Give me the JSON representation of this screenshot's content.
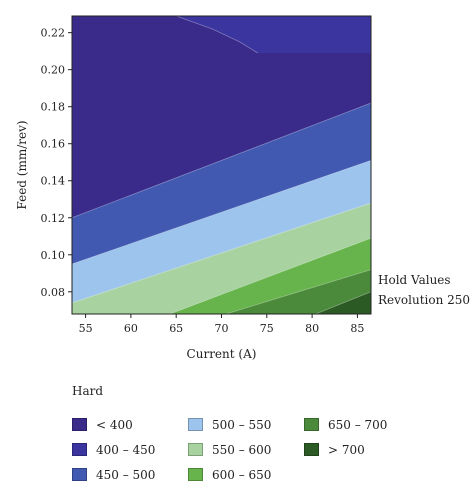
{
  "chart_data": {
    "type": "contour",
    "xlabel": "Current (A)",
    "ylabel": "Feed (mm/rev)",
    "xlim": [
      53.5,
      86.5
    ],
    "ylim": [
      0.068,
      0.229
    ],
    "xticks": [
      55,
      60,
      65,
      70,
      75,
      80,
      85
    ],
    "yticks": [
      0.08,
      0.1,
      0.12,
      0.14,
      0.16,
      0.18,
      0.2,
      0.22
    ],
    "xtick_labels": [
      "55",
      "60",
      "65",
      "70",
      "75",
      "80",
      "85"
    ],
    "ytick_labels": [
      "0.08",
      "0.10",
      "0.12",
      "0.14",
      "0.16",
      "0.18",
      "0.20",
      "0.22"
    ],
    "hold_values": {
      "title": "Hold Values",
      "line": "Revolution 250"
    },
    "legend": {
      "title": "Hard",
      "placement": "bottom",
      "items": [
        {
          "label": "< 400",
          "color": "#3a2a8a"
        },
        {
          "label": "400 – 450",
          "color": "#3b35a0"
        },
        {
          "label": "450 – 500",
          "color": "#4159b0"
        },
        {
          "label": "500 – 550",
          "color": "#9cc4ec"
        },
        {
          "label": "550 – 600",
          "color": "#a8d3a0"
        },
        {
          "label": "600 – 650",
          "color": "#67b34c"
        },
        {
          "label": "650 – 700",
          "color": "#4a8a3a"
        },
        {
          "label": "> 700",
          "color": "#2c5a25"
        }
      ]
    },
    "contours": [
      {
        "level": 400,
        "points": [
          [
            65.0,
            0.229
          ],
          [
            69.0,
            0.222
          ],
          [
            72.0,
            0.215
          ],
          [
            74.0,
            0.209
          ]
        ]
      },
      {
        "level": 450,
        "points": [
          [
            53.5,
            0.12
          ],
          [
            86.5,
            0.182
          ]
        ]
      },
      {
        "level": 500,
        "points": [
          [
            53.5,
            0.095
          ],
          [
            86.5,
            0.151
          ]
        ]
      },
      {
        "level": 550,
        "points": [
          [
            53.5,
            0.074
          ],
          [
            86.5,
            0.128
          ]
        ]
      },
      {
        "level": 600,
        "points": [
          [
            64.3,
            0.068
          ],
          [
            86.5,
            0.109
          ]
        ]
      },
      {
        "level": 650,
        "points": [
          [
            70.5,
            0.068
          ],
          [
            86.5,
            0.092
          ]
        ]
      },
      {
        "level": 700,
        "points": [
          [
            80.4,
            0.068
          ],
          [
            86.5,
            0.08
          ]
        ]
      }
    ]
  }
}
